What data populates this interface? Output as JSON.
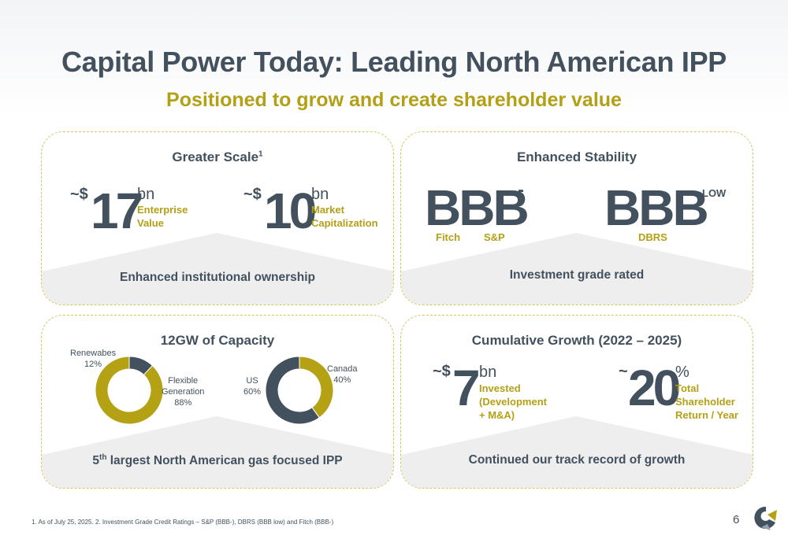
{
  "title": "Capital Power Today: Leading North American IPP",
  "subtitle": "Positioned to grow and create shareholder value",
  "scale": {
    "title": "Greater Scale",
    "title_sup": "1",
    "items": [
      {
        "tilde": "~$",
        "value": "17",
        "unit": "bn",
        "desc1": "Enterprise",
        "desc2": "Value"
      },
      {
        "tilde": "~$",
        "value": "10",
        "unit": "bn",
        "desc1": "Market",
        "desc2": "Capitalization"
      }
    ],
    "footer": "Enhanced institutional ownership"
  },
  "stability": {
    "title": "Enhanced Stability",
    "ratings": [
      {
        "value": "BBB",
        "suffix": "-"
      },
      {
        "value": "BBB",
        "suffix": "LOW"
      }
    ],
    "agencies": [
      "Fitch",
      "S&P",
      "DBRS"
    ],
    "footer": "Investment grade rated"
  },
  "capacity": {
    "title": "12GW of Capacity",
    "footer_sup": "th",
    "footer_num": "5",
    "footer": "largest North American gas focused IPP",
    "donut1": {
      "segments": [
        {
          "label1": "Renewabes",
          "label2": "12%",
          "value": 12,
          "color": "#43515e"
        },
        {
          "label1": "Flexible",
          "label2": "Generation",
          "label3": "88%",
          "value": 88,
          "color": "#b5a114"
        }
      ]
    },
    "donut2": {
      "segments": [
        {
          "label1": "Canada",
          "label2": "40%",
          "value": 40,
          "color": "#b5a114"
        },
        {
          "label1": "US",
          "label2": "60%",
          "value": 60,
          "color": "#43515e"
        }
      ]
    }
  },
  "growth": {
    "title": "Cumulative Growth (2022 – 2025)",
    "items": [
      {
        "tilde": "~$",
        "value": "7",
        "unit": "bn",
        "desc1": "Invested",
        "desc2": "(Development",
        "desc3": "+ M&A)"
      },
      {
        "tilde": "~",
        "value": "20",
        "unit": "%",
        "desc1": "Total",
        "desc2": "Shareholder",
        "desc3": "Return / Year"
      }
    ],
    "footer": "Continued our track record of growth"
  },
  "footnote": "1.  As of July 25, 2025.    2.  Investment Grade Credit Ratings – S&P (BBB-), DBRS (BBB low) and Fitch (BBB-)",
  "page_number": "6",
  "colors": {
    "accent": "#b3a016",
    "dark": "#43515e",
    "band": "#eeeeef",
    "border": "#d3c55a"
  }
}
